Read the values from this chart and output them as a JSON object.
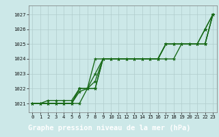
{
  "title": "Graphe pression niveau de la mer (hPa)",
  "xlabel_ticks": [
    "0",
    "1",
    "2",
    "3",
    "4",
    "5",
    "6",
    "7",
    "8",
    "9",
    "10",
    "11",
    "12",
    "13",
    "14",
    "15",
    "16",
    "17",
    "18",
    "19",
    "20",
    "21",
    "22",
    "23"
  ],
  "yticks": [
    1021,
    1022,
    1023,
    1024,
    1025,
    1026,
    1027
  ],
  "ylim": [
    1020.4,
    1027.6
  ],
  "xlim": [
    -0.5,
    23.5
  ],
  "bg_color": "#cce8e8",
  "grid_color": "#b0cccc",
  "line_color": "#1a6b1a",
  "series": [
    [
      1021.0,
      1021.0,
      1021.0,
      1021.0,
      1021.0,
      1021.0,
      1021.8,
      1022.0,
      1023.0,
      1024.0,
      1024.0,
      1024.0,
      1024.0,
      1024.0,
      1024.0,
      1024.0,
      1024.0,
      1025.0,
      1025.0,
      1025.0,
      1025.0,
      1025.0,
      1026.0,
      1027.0
    ],
    [
      1021.0,
      1021.0,
      1021.0,
      1021.0,
      1021.0,
      1021.0,
      1022.0,
      1022.0,
      1022.0,
      1024.0,
      1024.0,
      1024.0,
      1024.0,
      1024.0,
      1024.0,
      1024.0,
      1024.0,
      1024.0,
      1024.0,
      1025.0,
      1025.0,
      1025.0,
      1025.0,
      1027.0
    ],
    [
      1021.0,
      1021.0,
      1021.0,
      1021.0,
      1021.0,
      1021.0,
      1022.0,
      1022.0,
      1024.0,
      1024.0,
      1024.0,
      1024.0,
      1024.0,
      1024.0,
      1024.0,
      1024.0,
      1024.0,
      1025.0,
      1025.0,
      1025.0,
      1025.0,
      1025.0,
      1025.0,
      1027.0
    ],
    [
      1021.0,
      1021.0,
      1021.2,
      1021.2,
      1021.2,
      1021.2,
      1022.0,
      1022.0,
      1022.0,
      1024.0,
      1024.0,
      1024.0,
      1024.0,
      1024.0,
      1024.0,
      1024.0,
      1024.0,
      1025.0,
      1025.0,
      1025.0,
      1025.0,
      1025.0,
      1025.0,
      1027.0
    ],
    [
      1021.0,
      1021.0,
      1021.0,
      1021.0,
      1021.0,
      1021.0,
      1021.0,
      1022.0,
      1022.5,
      1024.0,
      1024.0,
      1024.0,
      1024.0,
      1024.0,
      1024.0,
      1024.0,
      1024.0,
      1025.0,
      1025.0,
      1025.0,
      1025.0,
      1025.0,
      1026.0,
      1027.0
    ]
  ],
  "marker": "*",
  "markersize": 3.5,
  "linewidth": 1.0,
  "title_fontsize": 7.5,
  "tick_fontsize": 5.2,
  "title_bg_color": "#2d7a2d",
  "title_text_color": "#ffffff",
  "spine_color": "#777777"
}
